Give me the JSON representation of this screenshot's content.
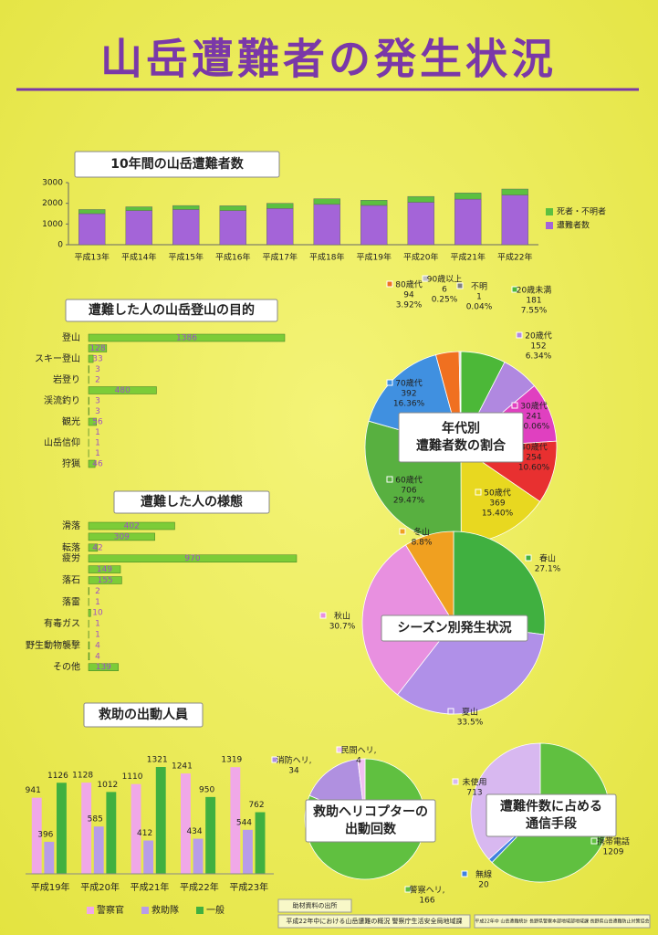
{
  "title": "山岳遭難者の発生状況",
  "footer": {
    "source_heading": "助材資料の出所",
    "source": "平成22年中における山岳遭難の概況 警察庁生活安全局地域課",
    "note": "平成22年中 山岳遭難統計 長野県警察本部地域部地域課 長野県山岳遭難防止対策協会"
  },
  "chart_data": [
    {
      "type": "stacked_bar",
      "title": "10年間の山岳遭難者数",
      "categories": [
        "平成13年",
        "平成14年",
        "平成15年",
        "平成16年",
        "平成17年",
        "平成18年",
        "平成19年",
        "平成20年",
        "平成21年",
        "平成22年"
      ],
      "series": [
        {
          "name": "遭難者数",
          "color": "#a464d8",
          "values": [
            1500,
            1650,
            1700,
            1650,
            1750,
            1950,
            1900,
            2050,
            2200,
            2400
          ]
        },
        {
          "name": "死者・不明者",
          "color": "#5cc040",
          "values": [
            200,
            180,
            190,
            230,
            250,
            270,
            250,
            280,
            300,
            290
          ]
        }
      ],
      "ylim": [
        0,
        3000
      ],
      "yticks": [
        0,
        1000,
        2000,
        3000
      ]
    },
    {
      "type": "hbar",
      "title": "遭難した人の山岳登山の目的",
      "categories": [
        "登山",
        null,
        "スキー登山",
        null,
        "岩登り",
        null,
        "渓流釣り",
        null,
        "観光",
        null,
        "山岳信仰",
        null,
        "狩猟"
      ],
      "values": [
        1386,
        128,
        33,
        3,
        2,
        480,
        3,
        3,
        56,
        1,
        1,
        1,
        46
      ],
      "color": "#7ccc38"
    },
    {
      "type": "hbar",
      "title": "遭難した人の様態",
      "categories": [
        "滑落",
        null,
        "転落",
        "疲労",
        null,
        "落石",
        null,
        "落雷",
        null,
        "有毒ガス",
        null,
        "野生動物襲撃",
        null,
        "その他"
      ],
      "values": [
        402,
        309,
        42,
        970,
        149,
        155,
        2,
        1,
        10,
        1,
        1,
        4,
        4,
        139
      ],
      "color": "#7ccc38"
    },
    {
      "type": "pie",
      "title": [
        "年代別",
        "遭難者数の割合"
      ],
      "categories": [
        "20歳未満",
        "20歳代",
        "30歳代",
        "40歳代",
        "50歳代",
        "60歳代",
        "70歳代",
        "80歳代",
        "90歳以上",
        "不明"
      ],
      "values": [
        181,
        152,
        241,
        254,
        369,
        706,
        392,
        94,
        6,
        1
      ],
      "percent_labels": [
        "7.55%",
        "6.34%",
        "10.06%",
        "10.60%",
        "15.40%",
        "29.47%",
        "16.36%",
        "3.92%",
        "0.25%",
        "0.04%"
      ],
      "colors": [
        "#4cb838",
        "#b088e0",
        "#e040c0",
        "#e83030",
        "#e8d820",
        "#58b040",
        "#4090e0",
        "#f07020",
        "#c0c0c0",
        "#808080"
      ]
    },
    {
      "type": "pie",
      "title": "シーズン別発生状況",
      "categories": [
        "春山",
        "夏山",
        "秋山",
        "冬山"
      ],
      "values": [
        27.1,
        33.5,
        30.7,
        8.8
      ],
      "value_labels": [
        "27.1%",
        "33.5%",
        "30.7%",
        "8.8%"
      ],
      "colors": [
        "#40b040",
        "#b090e8",
        "#e890e0",
        "#f0a020"
      ]
    },
    {
      "type": "grouped_bar",
      "title": "救助の出動人員",
      "categories": [
        "平成19年",
        "平成20年",
        "平成21年",
        "平成22年",
        "平成23年"
      ],
      "series": [
        {
          "name": "警察官",
          "color": "#f0a8e8",
          "values": [
            941,
            1128,
            1110,
            1241,
            1319
          ]
        },
        {
          "name": "救助隊",
          "color": "#b89ce8",
          "values": [
            396,
            585,
            412,
            434,
            544
          ]
        },
        {
          "name": "一般",
          "color": "#40b040",
          "values": [
            1126,
            1012,
            1321,
            950,
            762
          ]
        }
      ]
    },
    {
      "type": "pie",
      "title": [
        "救助ヘリコプターの",
        "出動回数"
      ],
      "categories": [
        "警察ヘリ,",
        "消防ヘリ,",
        "民間ヘリ,"
      ],
      "values": [
        166,
        34,
        4
      ],
      "colors": [
        "#60c040",
        "#b090e0",
        "#f0c0f0"
      ]
    },
    {
      "type": "pie",
      "title": [
        "遭難件数に占める",
        "通信手段"
      ],
      "categories": [
        "携帯電話",
        "無線",
        "未使用"
      ],
      "values": [
        1209,
        20,
        713
      ],
      "colors": [
        "#60c040",
        "#4080e0",
        "#d8b8f0"
      ]
    }
  ]
}
